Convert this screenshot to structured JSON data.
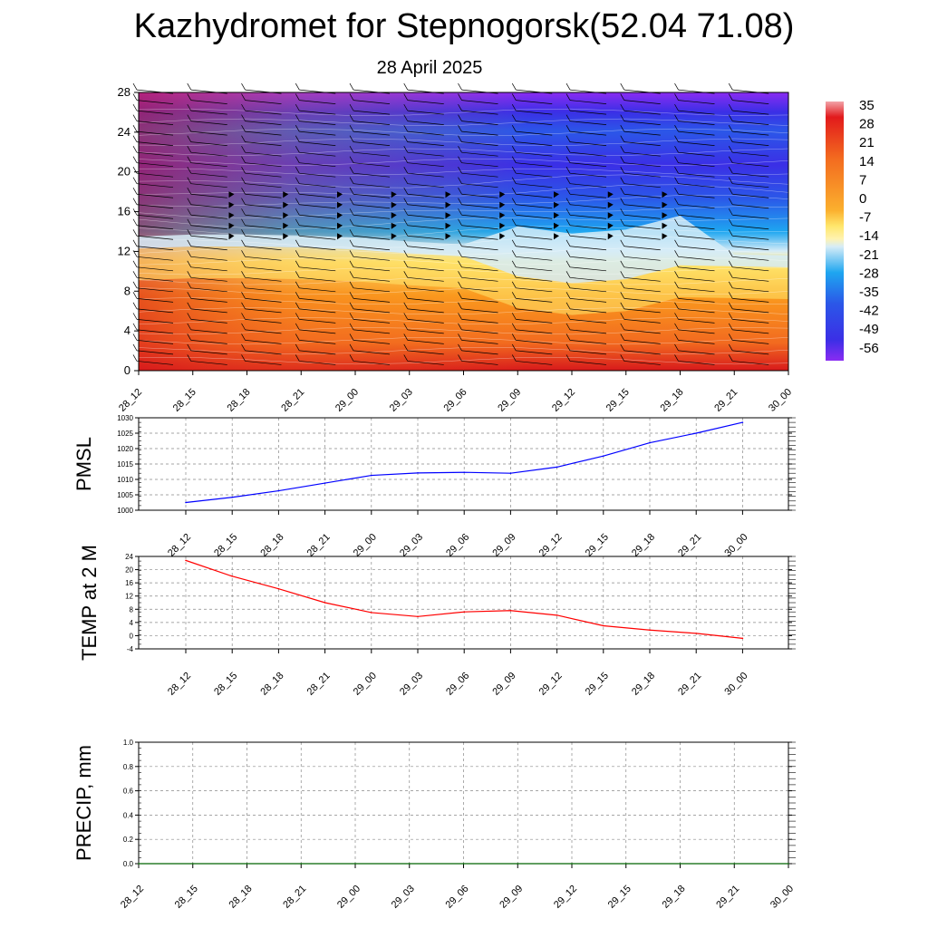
{
  "title": "Kazhydromet for Stepnogorsk(52.04 71.08)",
  "subtitle": "28 April 2025",
  "chart_data": [
    {
      "type": "heatmap",
      "name": "vertical-cross-section",
      "x_ticks": [
        "28_12",
        "28_15",
        "28_18",
        "28_21",
        "29_00",
        "29_03",
        "29_06",
        "29_09",
        "29_12",
        "29_15",
        "29_18",
        "29_21",
        "30_00"
      ],
      "y_ticks": [
        "0",
        "4",
        "8",
        "12",
        "16",
        "20",
        "24",
        "28"
      ],
      "ylim": [
        0,
        28
      ],
      "colorbar": [
        "35",
        "28",
        "21",
        "14",
        "7",
        "0",
        "-7",
        "-14",
        "-21",
        "-28",
        "-35",
        "-42",
        "-49",
        "-56"
      ],
      "freezing_level": [
        12.3,
        12.5,
        12.5,
        12.4,
        12.2,
        11.8,
        11.5,
        9.5,
        8.8,
        9.2,
        10.6,
        10.5,
        10.4
      ],
      "colors": {
        "warm": "#d7191c",
        "hot": "#f26a1f",
        "orange": "#fa9a1e",
        "yellow": "#ffe66b",
        "pale": "#d6ecf7",
        "sky": "#1ea6f0",
        "blue": "#2b57e8",
        "deep": "#3b2fe6",
        "violet": "#8a2cf2"
      }
    },
    {
      "type": "line",
      "name": "PMSL",
      "ylabel": "PMSL",
      "x": [
        "28_12",
        "28_15",
        "28_18",
        "28_21",
        "29_00",
        "29_03",
        "29_06",
        "29_09",
        "29_12",
        "29_15",
        "29_18",
        "29_21",
        "30_00"
      ],
      "values": [
        1002.5,
        1004.2,
        1006.3,
        1008.8,
        1011.3,
        1012.1,
        1012.3,
        1012.0,
        1014.0,
        1017.6,
        1021.9,
        1025.0,
        1028.5
      ],
      "ylim": [
        1000,
        1030
      ],
      "y_ticks": [
        "1000",
        "1005",
        "1010",
        "1015",
        "1020",
        "1025",
        "1030"
      ],
      "color": "#0000ff"
    },
    {
      "type": "line",
      "name": "TEMP",
      "ylabel": "TEMP at 2 M",
      "x": [
        "28_12",
        "28_15",
        "28_18",
        "28_21",
        "29_00",
        "29_03",
        "29_06",
        "29_09",
        "29_12",
        "29_15",
        "29_18",
        "29_21",
        "30_00"
      ],
      "values": [
        22.8,
        18.0,
        14.2,
        10.0,
        7.0,
        5.8,
        7.2,
        7.6,
        6.2,
        3.0,
        1.7,
        0.7,
        -0.8
      ],
      "ylim": [
        -4,
        24
      ],
      "y_ticks": [
        "-4",
        "0",
        "4",
        "8",
        "12",
        "16",
        "20",
        "24"
      ],
      "color": "#ff0000"
    },
    {
      "type": "line",
      "name": "PRECIP",
      "ylabel": "PRECIP, mm",
      "x": [
        "28_12",
        "28_15",
        "28_18",
        "28_21",
        "29_00",
        "29_03",
        "29_06",
        "29_09",
        "29_12",
        "29_15",
        "29_18",
        "29_21",
        "30_00"
      ],
      "values": [
        0,
        0,
        0,
        0,
        0,
        0,
        0,
        0,
        0,
        0,
        0,
        0,
        0
      ],
      "ylim": [
        0,
        1
      ],
      "y_ticks": [
        "0.0",
        "0.2",
        "0.4",
        "0.6",
        "0.8",
        "1.0"
      ],
      "color": "#006400"
    }
  ]
}
